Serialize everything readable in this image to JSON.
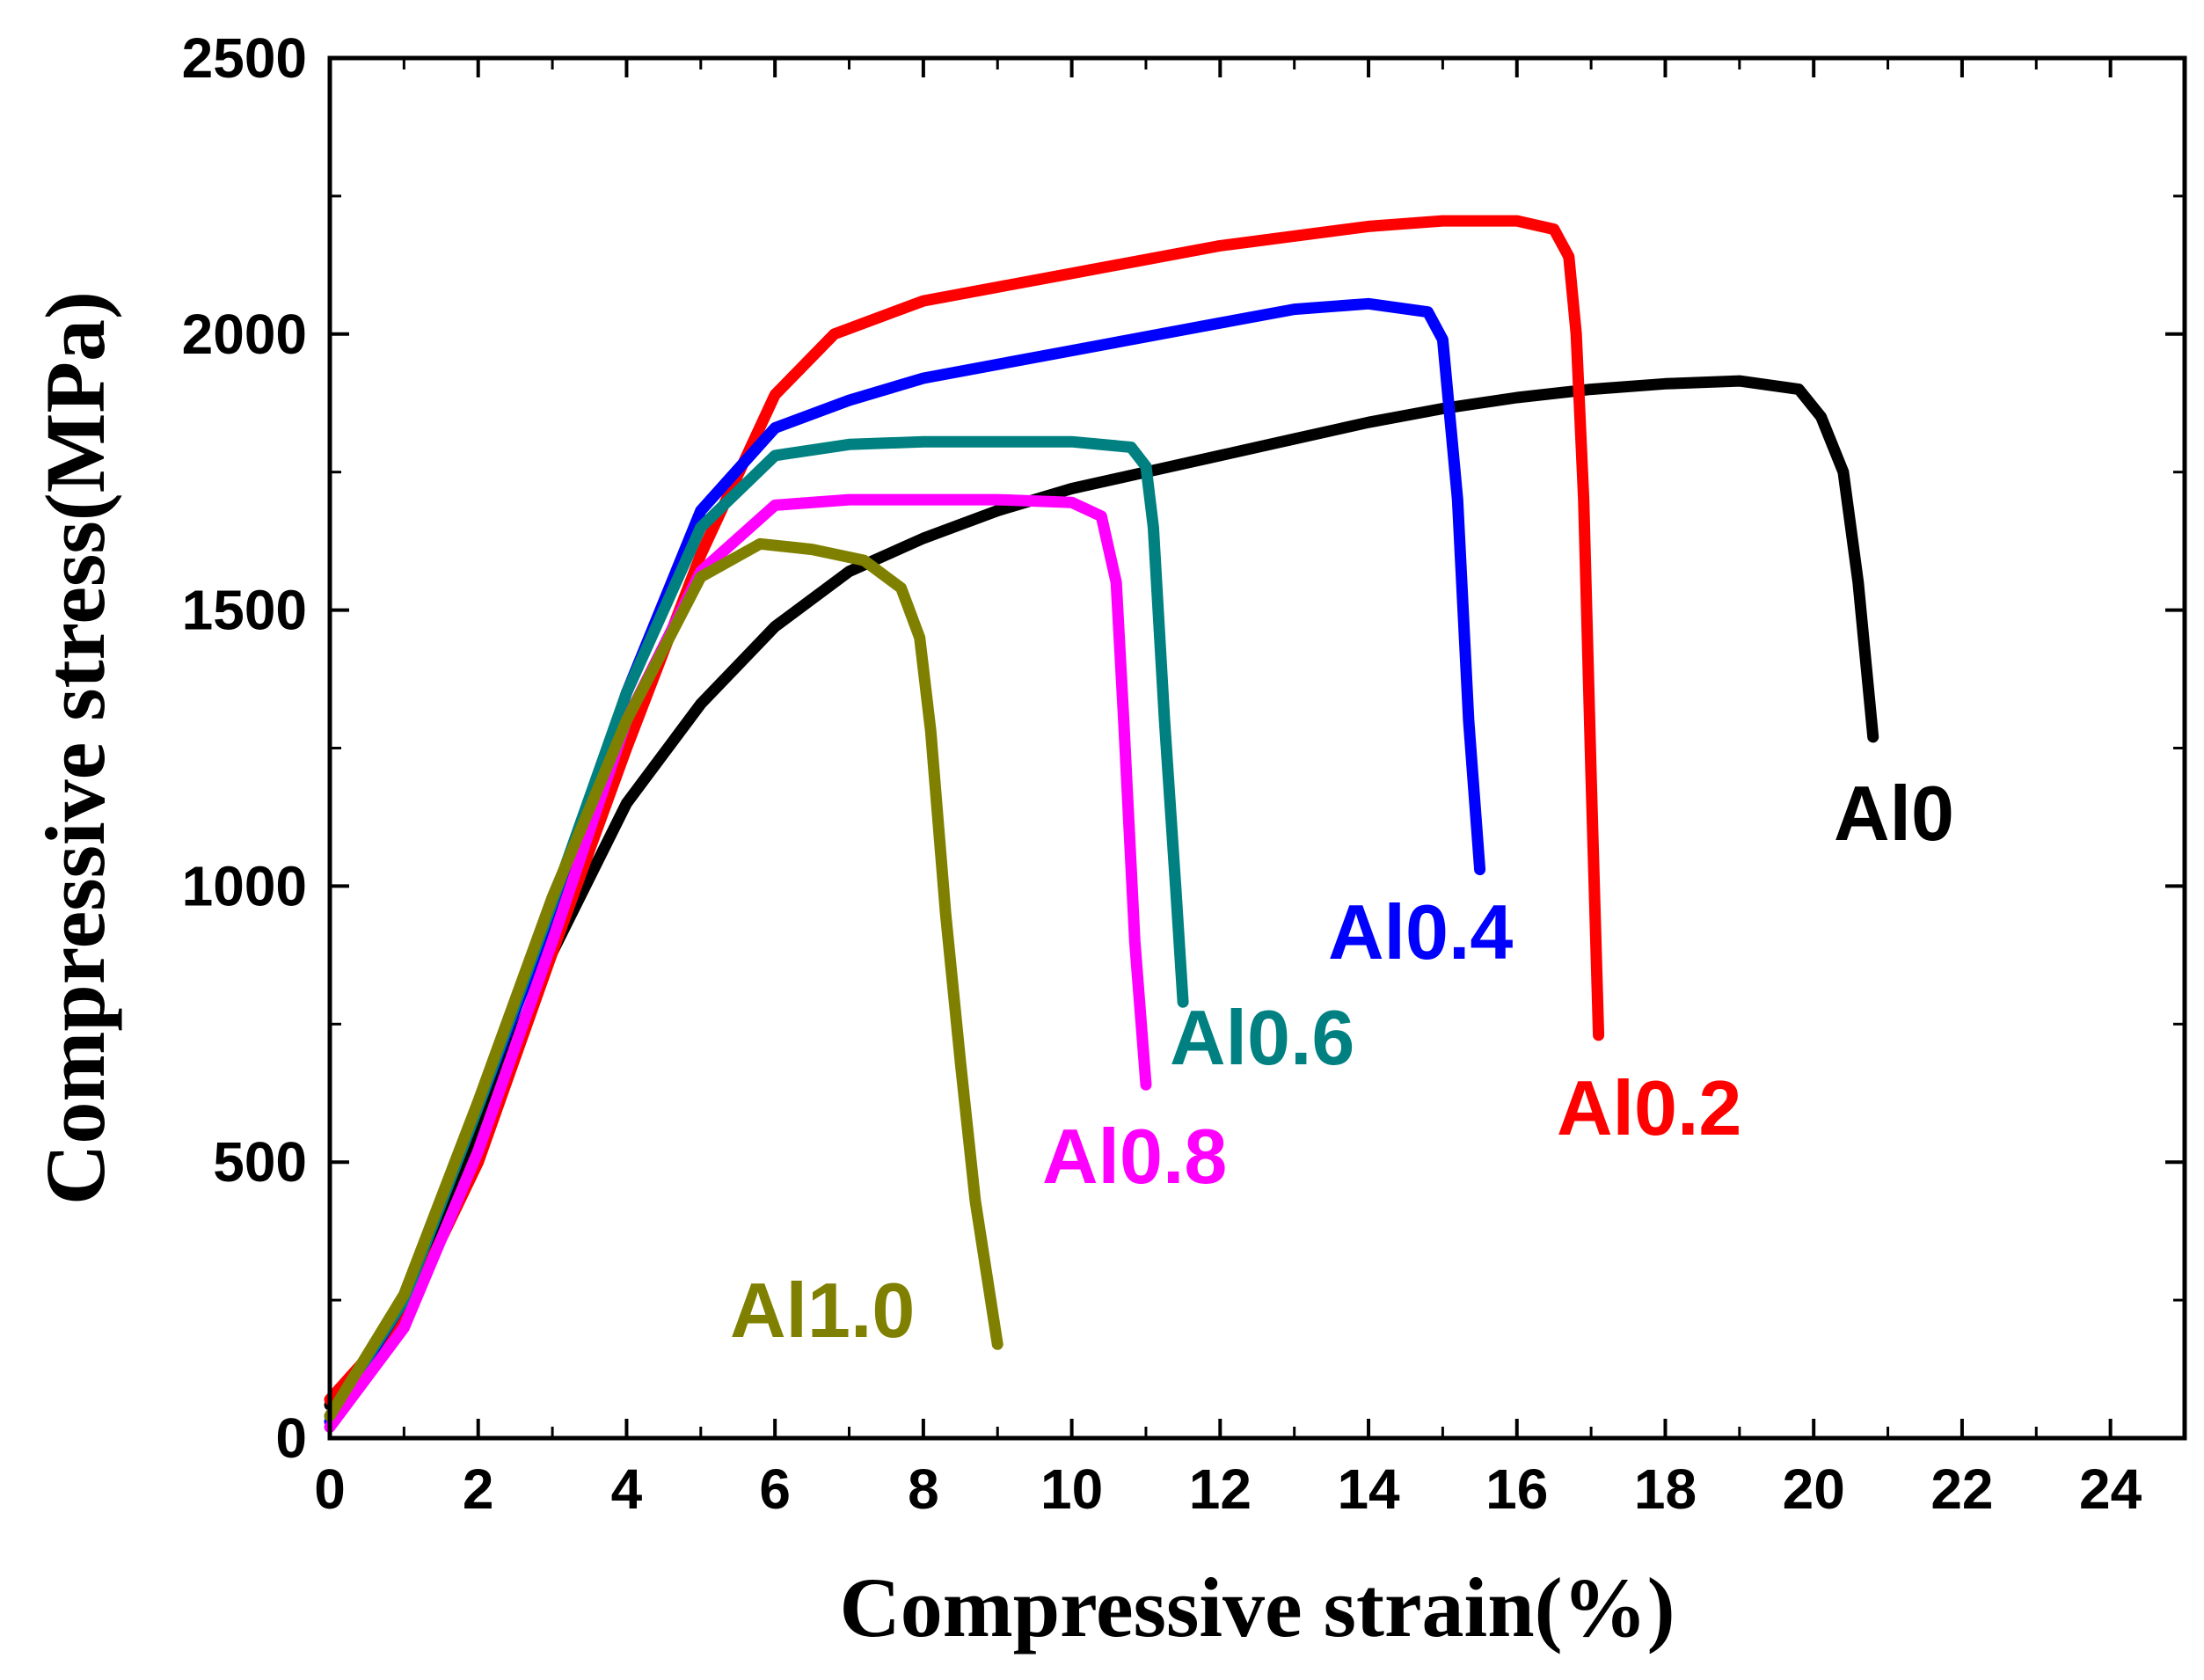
{
  "chart_data": {
    "type": "line",
    "title": "",
    "xlabel": "Compressive strain(%)",
    "ylabel": "Compressive stress(MPa)",
    "xlim": [
      0,
      25
    ],
    "ylim": [
      0,
      2500
    ],
    "grid": false,
    "x_ticks": [
      0,
      2,
      4,
      6,
      8,
      10,
      12,
      14,
      16,
      18,
      20,
      22,
      24
    ],
    "y_ticks": [
      0,
      500,
      1000,
      1500,
      2000,
      2500
    ],
    "series": [
      {
        "name": "Al0",
        "label": "Al0",
        "color": "#000000",
        "points": [
          [
            0,
            60
          ],
          [
            1,
            230
          ],
          [
            2,
            560
          ],
          [
            3,
            880
          ],
          [
            4,
            1150
          ],
          [
            5,
            1330
          ],
          [
            6,
            1470
          ],
          [
            7,
            1570
          ],
          [
            8,
            1630
          ],
          [
            9,
            1680
          ],
          [
            10,
            1720
          ],
          [
            11,
            1750
          ],
          [
            12,
            1780
          ],
          [
            13,
            1810
          ],
          [
            14,
            1840
          ],
          [
            15,
            1865
          ],
          [
            16,
            1885
          ],
          [
            17,
            1900
          ],
          [
            18,
            1910
          ],
          [
            19,
            1915
          ],
          [
            19.8,
            1900
          ],
          [
            20.1,
            1850
          ],
          [
            20.4,
            1750
          ],
          [
            20.6,
            1550
          ],
          [
            20.8,
            1270
          ]
        ]
      },
      {
        "name": "Al0.2",
        "label": "Al0.2",
        "color": "#ff0000",
        "points": [
          [
            0,
            70
          ],
          [
            1,
            220
          ],
          [
            2,
            500
          ],
          [
            3,
            880
          ],
          [
            4,
            1250
          ],
          [
            5,
            1600
          ],
          [
            6,
            1890
          ],
          [
            6.8,
            2000
          ],
          [
            8,
            2060
          ],
          [
            10,
            2110
          ],
          [
            12,
            2160
          ],
          [
            14,
            2195
          ],
          [
            15,
            2205
          ],
          [
            16,
            2205
          ],
          [
            16.5,
            2190
          ],
          [
            16.7,
            2140
          ],
          [
            16.8,
            2000
          ],
          [
            16.9,
            1700
          ],
          [
            17.0,
            1200
          ],
          [
            17.1,
            730
          ]
        ]
      },
      {
        "name": "Al0.4",
        "label": "Al0.4",
        "color": "#0000ff",
        "points": [
          [
            0,
            30
          ],
          [
            1,
            250
          ],
          [
            2,
            600
          ],
          [
            3,
            950
          ],
          [
            4,
            1350
          ],
          [
            5,
            1680
          ],
          [
            6,
            1830
          ],
          [
            7,
            1880
          ],
          [
            8,
            1920
          ],
          [
            10,
            1970
          ],
          [
            12,
            2020
          ],
          [
            13,
            2045
          ],
          [
            14,
            2055
          ],
          [
            14.8,
            2040
          ],
          [
            15.0,
            1990
          ],
          [
            15.2,
            1700
          ],
          [
            15.35,
            1300
          ],
          [
            15.5,
            1030
          ]
        ]
      },
      {
        "name": "Al0.6",
        "label": "Al0.6",
        "color": "#008080",
        "points": [
          [
            0,
            40
          ],
          [
            1,
            250
          ],
          [
            2,
            600
          ],
          [
            3,
            970
          ],
          [
            4,
            1350
          ],
          [
            5,
            1650
          ],
          [
            6,
            1780
          ],
          [
            7,
            1800
          ],
          [
            8,
            1805
          ],
          [
            9,
            1805
          ],
          [
            10,
            1805
          ],
          [
            10.8,
            1795
          ],
          [
            11.0,
            1760
          ],
          [
            11.1,
            1650
          ],
          [
            11.25,
            1300
          ],
          [
            11.4,
            1000
          ],
          [
            11.5,
            790
          ]
        ]
      },
      {
        "name": "Al0.8",
        "label": "Al0.8",
        "color": "#ff00ff",
        "points": [
          [
            0,
            20
          ],
          [
            1,
            200
          ],
          [
            2,
            520
          ],
          [
            3,
            900
          ],
          [
            4,
            1300
          ],
          [
            5,
            1570
          ],
          [
            6,
            1690
          ],
          [
            7,
            1700
          ],
          [
            8,
            1700
          ],
          [
            9,
            1700
          ],
          [
            10,
            1695
          ],
          [
            10.4,
            1670
          ],
          [
            10.6,
            1550
          ],
          [
            10.7,
            1300
          ],
          [
            10.85,
            900
          ],
          [
            11.0,
            640
          ]
        ]
      },
      {
        "name": "Al1.0",
        "label": "Al1.0",
        "color": "#808000",
        "points": [
          [
            0,
            40
          ],
          [
            1,
            260
          ],
          [
            2,
            610
          ],
          [
            3,
            980
          ],
          [
            4,
            1300
          ],
          [
            5,
            1560
          ],
          [
            5.8,
            1620
          ],
          [
            6.5,
            1610
          ],
          [
            7.2,
            1590
          ],
          [
            7.7,
            1540
          ],
          [
            7.95,
            1450
          ],
          [
            8.1,
            1280
          ],
          [
            8.3,
            950
          ],
          [
            8.5,
            680
          ],
          [
            8.7,
            430
          ],
          [
            9.0,
            170
          ]
        ]
      }
    ]
  }
}
